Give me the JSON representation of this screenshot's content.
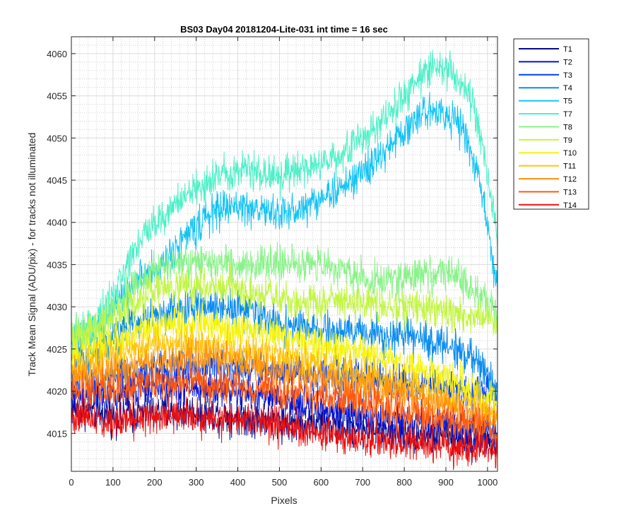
{
  "chart_data": {
    "type": "line",
    "title": "BS03 Day04 20181204-Lite-031 int time = 16 sec",
    "xlabel": "Pixels",
    "ylabel": "Track Mean Signal (ADU/pix) - for tracks not illuminated",
    "xlim": [
      0,
      1024
    ],
    "ylim": [
      4010.5,
      4062
    ],
    "xticks": [
      0,
      100,
      200,
      300,
      400,
      500,
      600,
      700,
      800,
      900,
      1000
    ],
    "yticks": [
      4015,
      4020,
      4025,
      4030,
      4035,
      4040,
      4045,
      4050,
      4055,
      4060
    ],
    "grid": true,
    "minor_grid": true,
    "legend_position": "outside-top-right",
    "noise_note_shown": false,
    "series": [
      {
        "name": "T1",
        "color": "#000a8f",
        "x": [
          0,
          100,
          200,
          300,
          400,
          500,
          600,
          700,
          800,
          900,
          1000,
          1024
        ],
        "y": [
          4018,
          4017,
          4017.5,
          4017.5,
          4017,
          4016.5,
          4016,
          4015.5,
          4015,
          4014.5,
          4014,
          4013.5
        ]
      },
      {
        "name": "T2",
        "color": "#0014d6",
        "x": [
          0,
          100,
          200,
          300,
          400,
          500,
          600,
          700,
          800,
          900,
          1000,
          1024
        ],
        "y": [
          4019.5,
          4019.5,
          4020.5,
          4020.5,
          4020,
          4019,
          4018,
          4017,
          4016.5,
          4016,
          4015.5,
          4015
        ]
      },
      {
        "name": "T3",
        "color": "#0040ff",
        "x": [
          0,
          100,
          200,
          300,
          400,
          500,
          600,
          700,
          800,
          900,
          1000,
          1024
        ],
        "y": [
          4021,
          4021.5,
          4022.5,
          4023,
          4023,
          4022.5,
          4022,
          4021.5,
          4021,
          4020.5,
          4020,
          4019.5
        ]
      },
      {
        "name": "T4",
        "color": "#0a8cf0",
        "x": [
          0,
          50,
          100,
          150,
          200,
          300,
          400,
          500,
          600,
          700,
          800,
          900,
          950,
          1000,
          1024
        ],
        "y": [
          4024,
          4024,
          4026.5,
          4028,
          4029,
          4030,
          4030,
          4028,
          4027,
          4027,
          4026.5,
          4025.5,
          4024.5,
          4022,
          4020
        ]
      },
      {
        "name": "T5",
        "color": "#12c3f5",
        "x": [
          0,
          50,
          100,
          150,
          200,
          250,
          300,
          350,
          400,
          450,
          500,
          550,
          600,
          650,
          700,
          750,
          800,
          850,
          880,
          900,
          940,
          970,
          1000,
          1024
        ],
        "y": [
          4026,
          4026.5,
          4030,
          4033,
          4034,
          4037,
          4039.5,
          4041.5,
          4042,
          4041.5,
          4041,
          4041.5,
          4043,
          4044,
          4046,
          4048,
          4051,
          4053,
          4053.5,
          4053,
          4051,
          4047,
          4040,
          4032
        ]
      },
      {
        "name": "T7",
        "color": "#4ff0c8",
        "x": [
          0,
          50,
          100,
          150,
          200,
          250,
          300,
          350,
          400,
          450,
          500,
          550,
          600,
          650,
          700,
          750,
          800,
          850,
          880,
          900,
          940,
          970,
          1000,
          1024
        ],
        "y": [
          4027,
          4027.5,
          4031,
          4037,
          4040,
          4042,
          4044,
          4045.5,
          4046.5,
          4046,
          4045.5,
          4046,
          4047,
          4048,
          4050,
          4052,
          4055,
          4058,
          4058.5,
          4058.5,
          4056,
          4053,
          4046,
          4038
        ]
      },
      {
        "name": "T8",
        "color": "#8af28a",
        "x": [
          0,
          50,
          100,
          150,
          200,
          250,
          300,
          350,
          400,
          450,
          500,
          550,
          600,
          650,
          700,
          750,
          800,
          850,
          900,
          950,
          1000,
          1024
        ],
        "y": [
          4027,
          4027.5,
          4029.5,
          4032.5,
          4034.5,
          4035,
          4035,
          4035,
          4035,
          4035,
          4035,
          4035,
          4035,
          4034.5,
          4033.5,
          4033,
          4033.5,
          4034,
          4034,
          4032.5,
          4030.5,
          4029
        ]
      },
      {
        "name": "T9",
        "color": "#c2f542",
        "x": [
          0,
          50,
          100,
          150,
          200,
          250,
          300,
          350,
          400,
          450,
          500,
          550,
          600,
          650,
          700,
          750,
          800,
          850,
          900,
          950,
          1000,
          1024
        ],
        "y": [
          4026.5,
          4027,
          4028.5,
          4030.5,
          4032,
          4032.5,
          4032.5,
          4032.5,
          4032,
          4031.5,
          4031,
          4030.5,
          4030.5,
          4030.5,
          4030.5,
          4030,
          4030,
          4030,
          4029.5,
          4029,
          4028.5,
          4028
        ]
      },
      {
        "name": "T10",
        "color": "#f5f50c",
        "x": [
          0,
          100,
          200,
          300,
          400,
          500,
          600,
          700,
          800,
          900,
          1000,
          1024
        ],
        "y": [
          4024.5,
          4025.5,
          4028,
          4028,
          4027.5,
          4026.5,
          4025.5,
          4024.5,
          4023,
          4021.5,
          4020,
          4019
        ]
      },
      {
        "name": "T11",
        "color": "#ffc40a",
        "x": [
          0,
          100,
          200,
          300,
          400,
          500,
          600,
          700,
          800,
          900,
          1000,
          1024
        ],
        "y": [
          4022.5,
          4024,
          4025.5,
          4025.5,
          4025,
          4024,
          4023,
          4022,
          4021,
          4019.5,
          4018,
          4017.5
        ]
      },
      {
        "name": "T12",
        "color": "#ff9410",
        "x": [
          0,
          100,
          200,
          300,
          400,
          500,
          600,
          700,
          800,
          900,
          1000,
          1024
        ],
        "y": [
          4021.5,
          4022,
          4023.5,
          4024,
          4023.5,
          4022.5,
          4021.5,
          4020.5,
          4019.5,
          4018.5,
          4017,
          4016.5
        ]
      },
      {
        "name": "T13",
        "color": "#ff5a10",
        "x": [
          0,
          100,
          200,
          300,
          400,
          500,
          600,
          700,
          800,
          900,
          1000,
          1024
        ],
        "y": [
          4020,
          4020,
          4021,
          4021,
          4020.5,
          4020,
          4019.5,
          4018.5,
          4017.5,
          4016.5,
          4015.5,
          4015
        ]
      },
      {
        "name": "T14",
        "color": "#ee1010",
        "x": [
          0,
          100,
          200,
          300,
          400,
          500,
          600,
          700,
          800,
          900,
          1000,
          1024
        ],
        "y": [
          4017,
          4016.5,
          4017,
          4017,
          4016.5,
          4016,
          4015,
          4014.5,
          4014,
          4013.5,
          4013,
          4013
        ]
      }
    ]
  }
}
